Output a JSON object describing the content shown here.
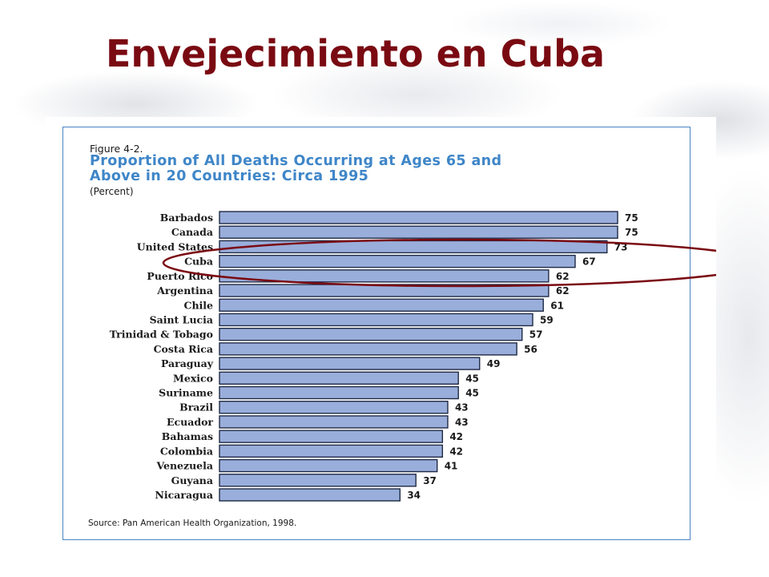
{
  "slide": {
    "title": "Envejecimiento en Cuba"
  },
  "figure": {
    "number": "Figure 4-2.",
    "title_line1": "Proportion of All Deaths Occurring at Ages 65 and",
    "title_line2": "Above in 20 Countries:  Circa 1995",
    "unit": "(Percent)",
    "source": "Source: Pan American Health Organization, 1998."
  },
  "colors": {
    "title": "#7a0a12",
    "figure_title": "#3f86c8",
    "bar_fill": "#9aaedb",
    "bar_stroke": "#1f2a44",
    "frame": "#4a86c4",
    "highlight_ellipse": "#7a0a12"
  },
  "highlight": {
    "shape": "ellipse",
    "category": "Cuba"
  },
  "chart_data": {
    "type": "bar",
    "orientation": "horizontal",
    "title": "Proportion of All Deaths Occurring at Ages 65 and Above in 20 Countries:  Circa 1995",
    "unit": "(Percent)",
    "categories": [
      "Barbados",
      "Canada",
      "United States",
      "Cuba",
      "Puerto Rico",
      "Argentina",
      "Chile",
      "Saint Lucia",
      "Trinidad & Tobago",
      "Costa Rica",
      "Paraguay",
      "Mexico",
      "Suriname",
      "Brazil",
      "Ecuador",
      "Bahamas",
      "Colombia",
      "Venezuela",
      "Guyana",
      "Nicaragua"
    ],
    "values": [
      75,
      75,
      73,
      67,
      62,
      62,
      61,
      59,
      57,
      56,
      49,
      45,
      45,
      43,
      43,
      42,
      42,
      41,
      37,
      34
    ],
    "xlim": [
      0,
      75
    ],
    "grid": false,
    "legend": "none"
  }
}
